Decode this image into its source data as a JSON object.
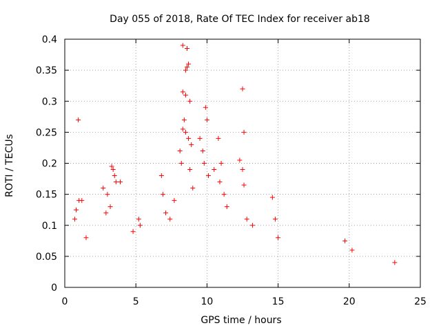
{
  "chart_data": {
    "type": "scatter",
    "title": "Day 055 of 2018, Rate Of TEC Index for receiver ab18",
    "xlabel": "GPS time / hours",
    "ylabel": "ROTI / TECUs",
    "xlim": [
      0,
      25
    ],
    "ylim": [
      0,
      0.4
    ],
    "x_ticks": [
      0,
      5,
      10,
      15,
      20,
      25
    ],
    "y_ticks": [
      0,
      0.05,
      0.1,
      0.15,
      0.2,
      0.25,
      0.3,
      0.35,
      0.4
    ],
    "x_tick_labels": [
      "0",
      "5",
      "10",
      "15",
      "20",
      "25"
    ],
    "y_tick_labels": [
      "0",
      "0.05",
      "0.1",
      "0.15",
      "0.2",
      "0.25",
      "0.3",
      "0.35",
      "0.4"
    ],
    "grid": true,
    "legend": "none",
    "marker": "plus",
    "color": "#ff0000",
    "series": [
      {
        "points": [
          [
            0.95,
            0.27
          ],
          [
            1.0,
            0.14
          ],
          [
            1.2,
            0.14
          ],
          [
            0.8,
            0.125
          ],
          [
            0.7,
            0.11
          ],
          [
            1.5,
            0.08
          ],
          [
            2.7,
            0.16
          ],
          [
            3.0,
            0.15
          ],
          [
            3.3,
            0.195
          ],
          [
            3.4,
            0.19
          ],
          [
            3.5,
            0.18
          ],
          [
            3.6,
            0.17
          ],
          [
            3.9,
            0.17
          ],
          [
            3.2,
            0.13
          ],
          [
            2.9,
            0.12
          ],
          [
            5.2,
            0.11
          ],
          [
            5.3,
            0.1
          ],
          [
            4.8,
            0.09
          ],
          [
            6.8,
            0.18
          ],
          [
            6.9,
            0.15
          ],
          [
            7.1,
            0.12
          ],
          [
            7.4,
            0.11
          ],
          [
            7.7,
            0.14
          ],
          [
            8.3,
            0.39
          ],
          [
            8.6,
            0.385
          ],
          [
            8.7,
            0.36
          ],
          [
            8.6,
            0.355
          ],
          [
            8.5,
            0.35
          ],
          [
            8.3,
            0.315
          ],
          [
            8.5,
            0.31
          ],
          [
            8.8,
            0.3
          ],
          [
            8.4,
            0.27
          ],
          [
            8.3,
            0.255
          ],
          [
            8.5,
            0.25
          ],
          [
            8.7,
            0.24
          ],
          [
            8.9,
            0.23
          ],
          [
            8.1,
            0.22
          ],
          [
            8.2,
            0.2
          ],
          [
            8.8,
            0.19
          ],
          [
            9.0,
            0.16
          ],
          [
            9.5,
            0.24
          ],
          [
            9.7,
            0.22
          ],
          [
            9.8,
            0.2
          ],
          [
            9.9,
            0.29
          ],
          [
            10.0,
            0.27
          ],
          [
            10.1,
            0.18
          ],
          [
            10.5,
            0.19
          ],
          [
            10.8,
            0.24
          ],
          [
            11.0,
            0.2
          ],
          [
            10.9,
            0.17
          ],
          [
            11.2,
            0.15
          ],
          [
            11.4,
            0.13
          ],
          [
            12.3,
            0.205
          ],
          [
            12.5,
            0.19
          ],
          [
            12.5,
            0.32
          ],
          [
            12.6,
            0.25
          ],
          [
            12.6,
            0.165
          ],
          [
            12.8,
            0.11
          ],
          [
            13.2,
            0.1
          ],
          [
            14.6,
            0.145
          ],
          [
            14.8,
            0.11
          ],
          [
            15.0,
            0.08
          ],
          [
            19.7,
            0.075
          ],
          [
            20.2,
            0.06
          ],
          [
            23.2,
            0.04
          ]
        ]
      }
    ]
  }
}
